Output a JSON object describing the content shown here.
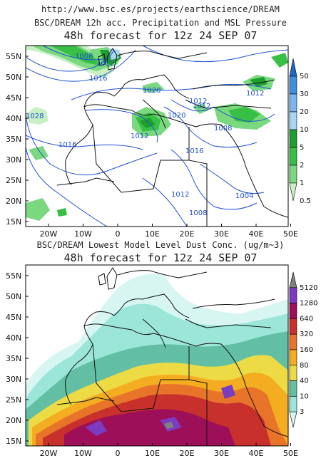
{
  "header": {
    "url": "http://www.bsc.es/projects/earthscience/DREAM"
  },
  "panels": [
    {
      "title_line1": "BSC/DREAM 12h acc. Precipitation and MSL Pressure",
      "title_line2": "48h forecast for 12z 24 SEP 07",
      "colorbar": {
        "labels": [
          "50",
          "30",
          "20",
          "10",
          "5",
          "2",
          "1",
          "0.5"
        ],
        "colors": [
          "#1e68c8",
          "#3f8fe0",
          "#7bb6ef",
          "#a8d7f5",
          "#1f9e30",
          "#38bf45",
          "#7ad87f",
          "#c8f0c4"
        ]
      },
      "isobar_labels": [
        "1008",
        "1012",
        "1016",
        "1020",
        "1028",
        "1012",
        "1012",
        "1016",
        "1012",
        "1020",
        "1016",
        "1012",
        "1008",
        "1008",
        "1004",
        "1012",
        "1008"
      ]
    },
    {
      "title_line1": "BSC/DREAM Lowest Model Level Dust Conc. (ug/m~3)",
      "title_line2": "48h forecast for 12z 24 SEP 07",
      "colorbar": {
        "labels": [
          "5120",
          "1280",
          "640",
          "320",
          "160",
          "80",
          "40",
          "10",
          "3"
        ],
        "colors": [
          "#808080",
          "#7a3cc0",
          "#9e0f5a",
          "#c8302c",
          "#e8742a",
          "#f4ac20",
          "#ecdb44",
          "#62bfa4",
          "#9be6d9",
          "#d8f6f1"
        ]
      }
    }
  ],
  "axes": {
    "lat_labels": [
      "55N",
      "50N",
      "45N",
      "40N",
      "35N",
      "30N",
      "25N",
      "20N",
      "15N"
    ],
    "lon_labels": [
      "20W",
      "10W",
      "0",
      "10E",
      "20E",
      "30E",
      "40E",
      "50E"
    ]
  }
}
